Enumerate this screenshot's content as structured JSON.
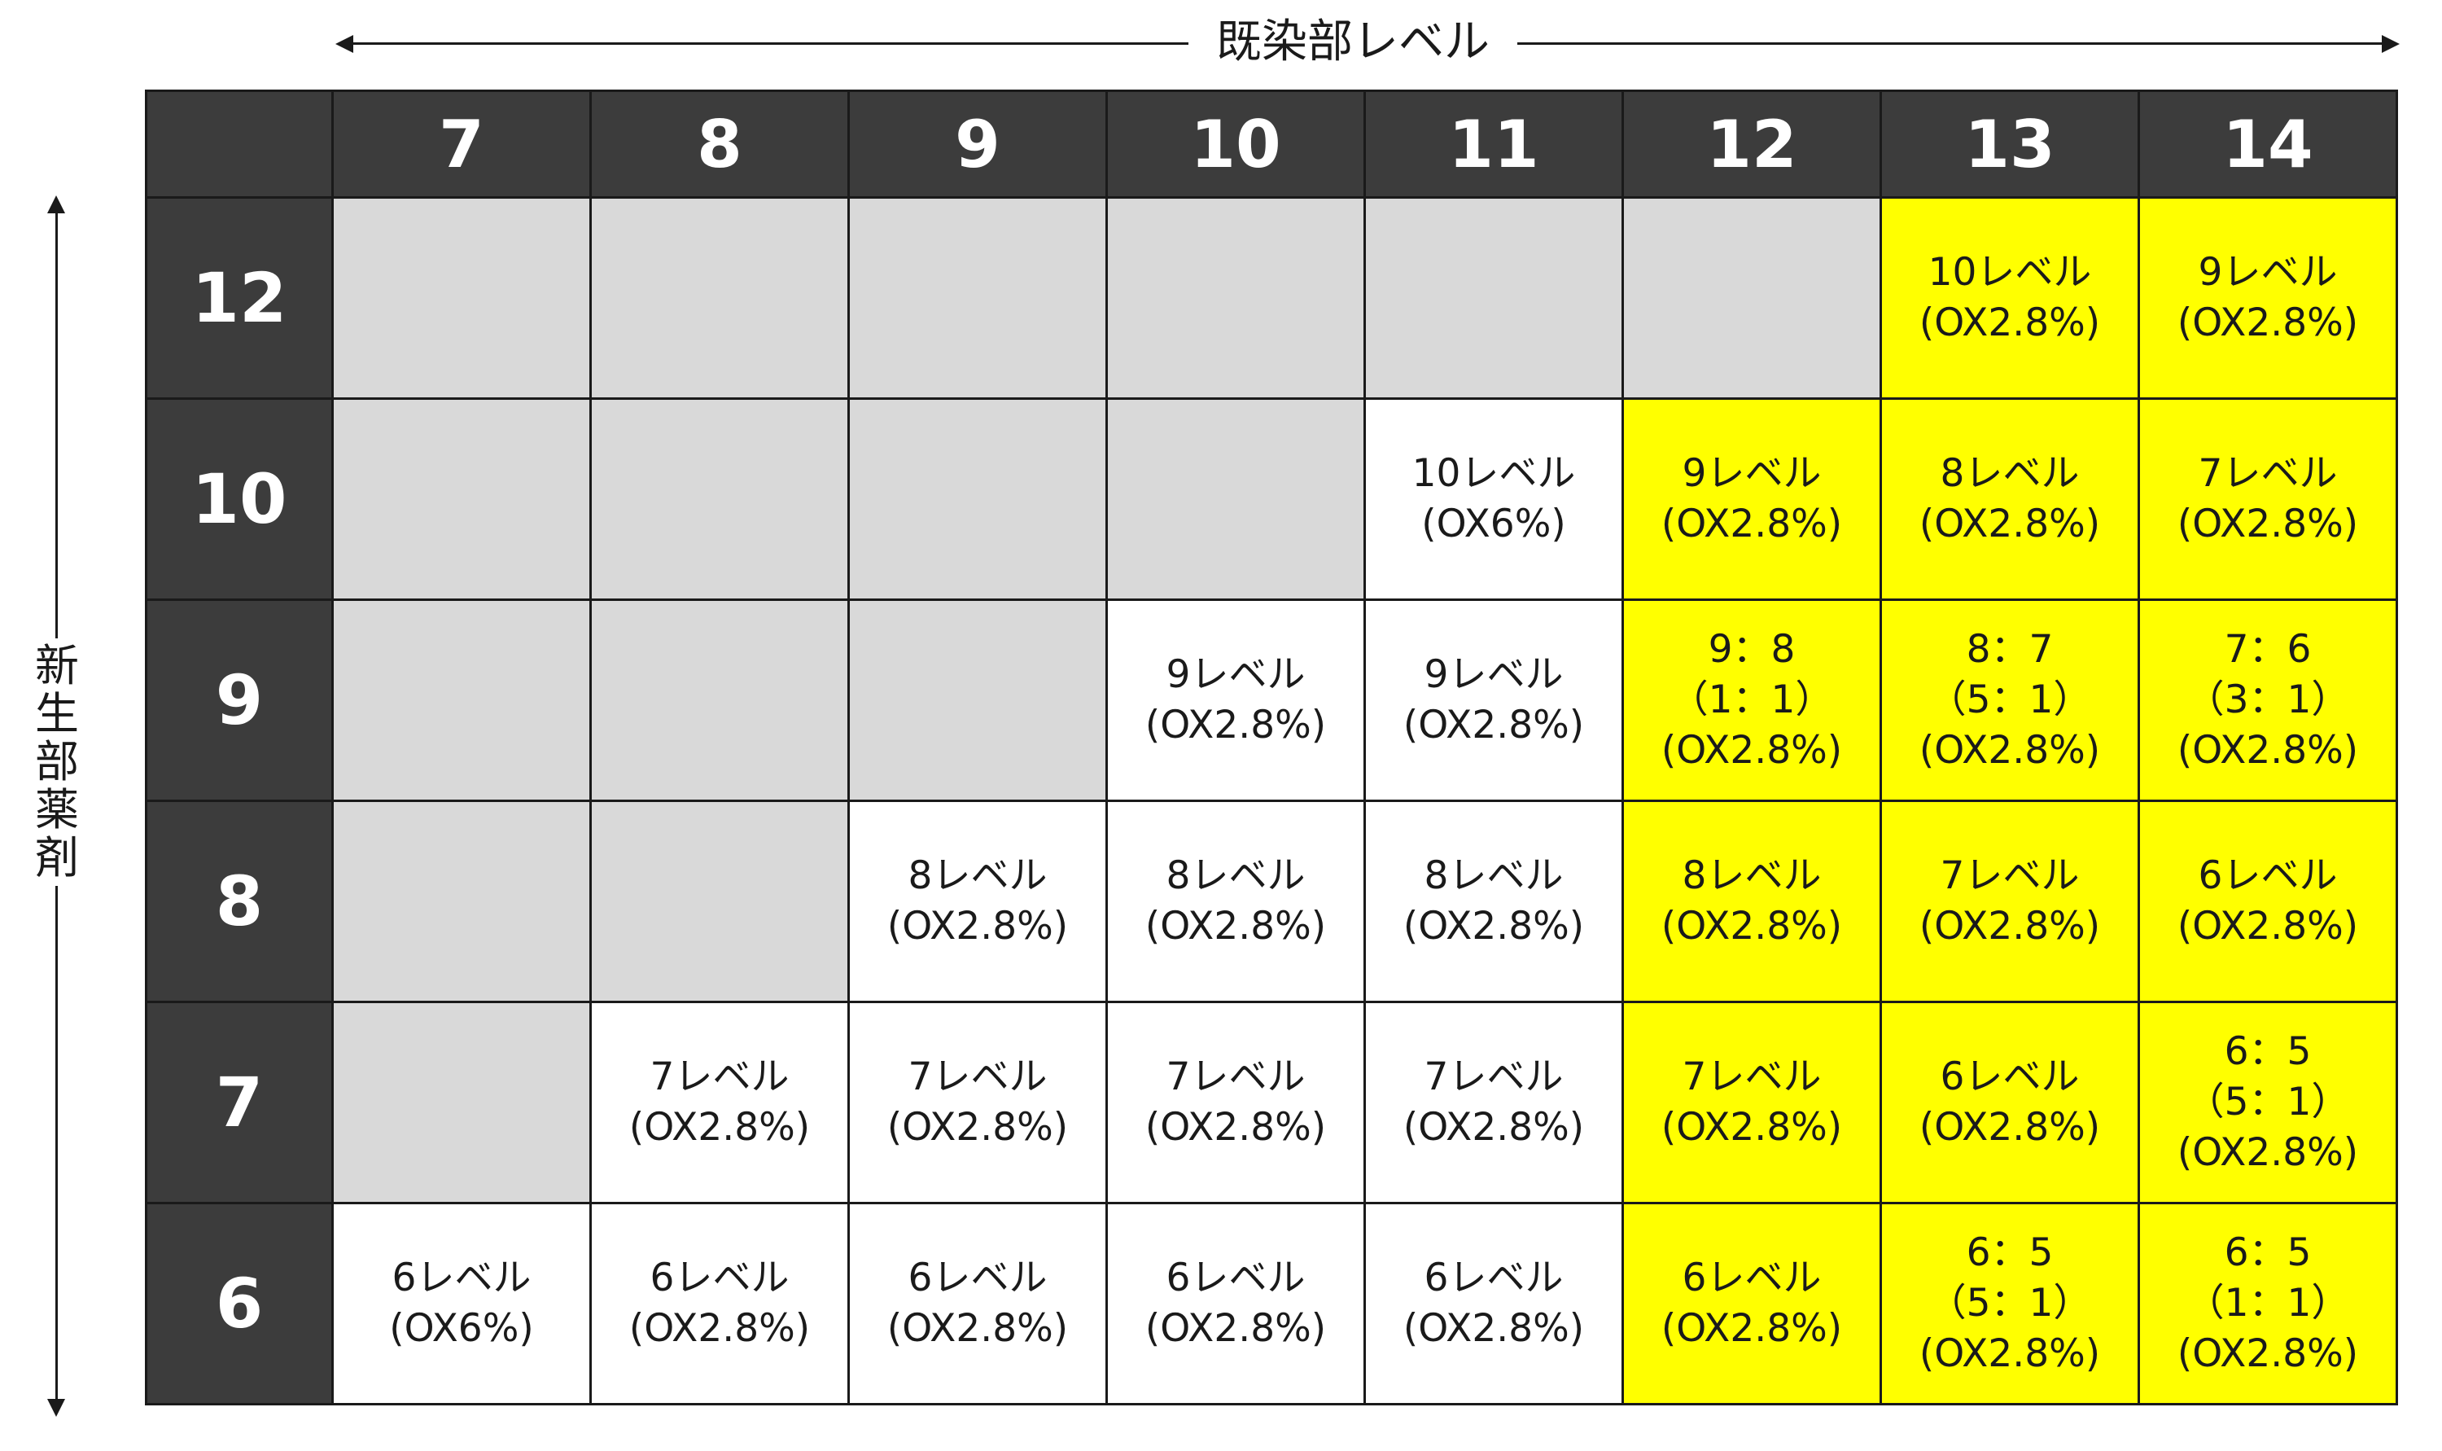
{
  "x_axis_label": "既染部レベル",
  "y_axis_label": "新生部薬剤",
  "columns": [
    "7",
    "8",
    "9",
    "10",
    "11",
    "12",
    "13",
    "14"
  ],
  "rows": [
    {
      "label": "12",
      "cells": [
        {
          "fill": "gray",
          "lines": []
        },
        {
          "fill": "gray",
          "lines": []
        },
        {
          "fill": "gray",
          "lines": []
        },
        {
          "fill": "gray",
          "lines": []
        },
        {
          "fill": "gray",
          "lines": []
        },
        {
          "fill": "gray",
          "lines": []
        },
        {
          "fill": "yellow",
          "lines": [
            "10レベル",
            "(OX2.8%)"
          ]
        },
        {
          "fill": "yellow",
          "lines": [
            "9レベル",
            "(OX2.8%)"
          ]
        }
      ]
    },
    {
      "label": "10",
      "cells": [
        {
          "fill": "gray",
          "lines": []
        },
        {
          "fill": "gray",
          "lines": []
        },
        {
          "fill": "gray",
          "lines": []
        },
        {
          "fill": "gray",
          "lines": []
        },
        {
          "fill": "white",
          "lines": [
            "10レベル",
            "(OX6%)"
          ]
        },
        {
          "fill": "yellow",
          "lines": [
            "9レベル",
            "(OX2.8%)"
          ]
        },
        {
          "fill": "yellow",
          "lines": [
            "8レベル",
            "(OX2.8%)"
          ]
        },
        {
          "fill": "yellow",
          "lines": [
            "7レベル",
            "(OX2.8%)"
          ]
        }
      ]
    },
    {
      "label": "9",
      "cells": [
        {
          "fill": "gray",
          "lines": []
        },
        {
          "fill": "gray",
          "lines": []
        },
        {
          "fill": "gray",
          "lines": []
        },
        {
          "fill": "white",
          "lines": [
            "9レベル",
            "(OX2.8%)"
          ]
        },
        {
          "fill": "white",
          "lines": [
            "9レベル",
            "(OX2.8%)"
          ]
        },
        {
          "fill": "yellow",
          "lines": [
            "9：8",
            "（1：1）",
            "(OX2.8%)"
          ]
        },
        {
          "fill": "yellow",
          "lines": [
            "8：7",
            "（5：1）",
            "(OX2.8%)"
          ]
        },
        {
          "fill": "yellow",
          "lines": [
            "7：6",
            "（3：1）",
            "(OX2.8%)"
          ]
        }
      ]
    },
    {
      "label": "8",
      "cells": [
        {
          "fill": "gray",
          "lines": []
        },
        {
          "fill": "gray",
          "lines": []
        },
        {
          "fill": "white",
          "lines": [
            "8レベル",
            "(OX2.8%)"
          ]
        },
        {
          "fill": "white",
          "lines": [
            "8レベル",
            "(OX2.8%)"
          ]
        },
        {
          "fill": "white",
          "lines": [
            "8レベル",
            "(OX2.8%)"
          ]
        },
        {
          "fill": "yellow",
          "lines": [
            "8レベル",
            "(OX2.8%)"
          ]
        },
        {
          "fill": "yellow",
          "lines": [
            "7レベル",
            "(OX2.8%)"
          ]
        },
        {
          "fill": "yellow",
          "lines": [
            "6レベル",
            "(OX2.8%)"
          ]
        }
      ]
    },
    {
      "label": "7",
      "cells": [
        {
          "fill": "gray",
          "lines": []
        },
        {
          "fill": "white",
          "lines": [
            "7レベル",
            "(OX2.8%)"
          ]
        },
        {
          "fill": "white",
          "lines": [
            "7レベル",
            "(OX2.8%)"
          ]
        },
        {
          "fill": "white",
          "lines": [
            "7レベル",
            "(OX2.8%)"
          ]
        },
        {
          "fill": "white",
          "lines": [
            "7レベル",
            "(OX2.8%)"
          ]
        },
        {
          "fill": "yellow",
          "lines": [
            "7レベル",
            "(OX2.8%)"
          ]
        },
        {
          "fill": "yellow",
          "lines": [
            "6レベル",
            "(OX2.8%)"
          ]
        },
        {
          "fill": "yellow",
          "lines": [
            "6：5",
            "（5：1）",
            "(OX2.8%)"
          ]
        }
      ]
    },
    {
      "label": "6",
      "cells": [
        {
          "fill": "white",
          "lines": [
            "6レベル",
            "(OX6%)"
          ]
        },
        {
          "fill": "white",
          "lines": [
            "6レベル",
            "(OX2.8%)"
          ]
        },
        {
          "fill": "white",
          "lines": [
            "6レベル",
            "(OX2.8%)"
          ]
        },
        {
          "fill": "white",
          "lines": [
            "6レベル",
            "(OX2.8%)"
          ]
        },
        {
          "fill": "white",
          "lines": [
            "6レベル",
            "(OX2.8%)"
          ]
        },
        {
          "fill": "yellow",
          "lines": [
            "6レベル",
            "(OX2.8%)"
          ]
        },
        {
          "fill": "yellow",
          "lines": [
            "6：5",
            "（5：1）",
            "(OX2.8%)"
          ]
        },
        {
          "fill": "yellow",
          "lines": [
            "6：5",
            "（1：1）",
            "(OX2.8%)"
          ]
        }
      ]
    }
  ],
  "colors": {
    "header": "#3c3c3c",
    "gray": "#d9d9d9",
    "white": "#ffffff",
    "yellow": "#ffff00"
  }
}
